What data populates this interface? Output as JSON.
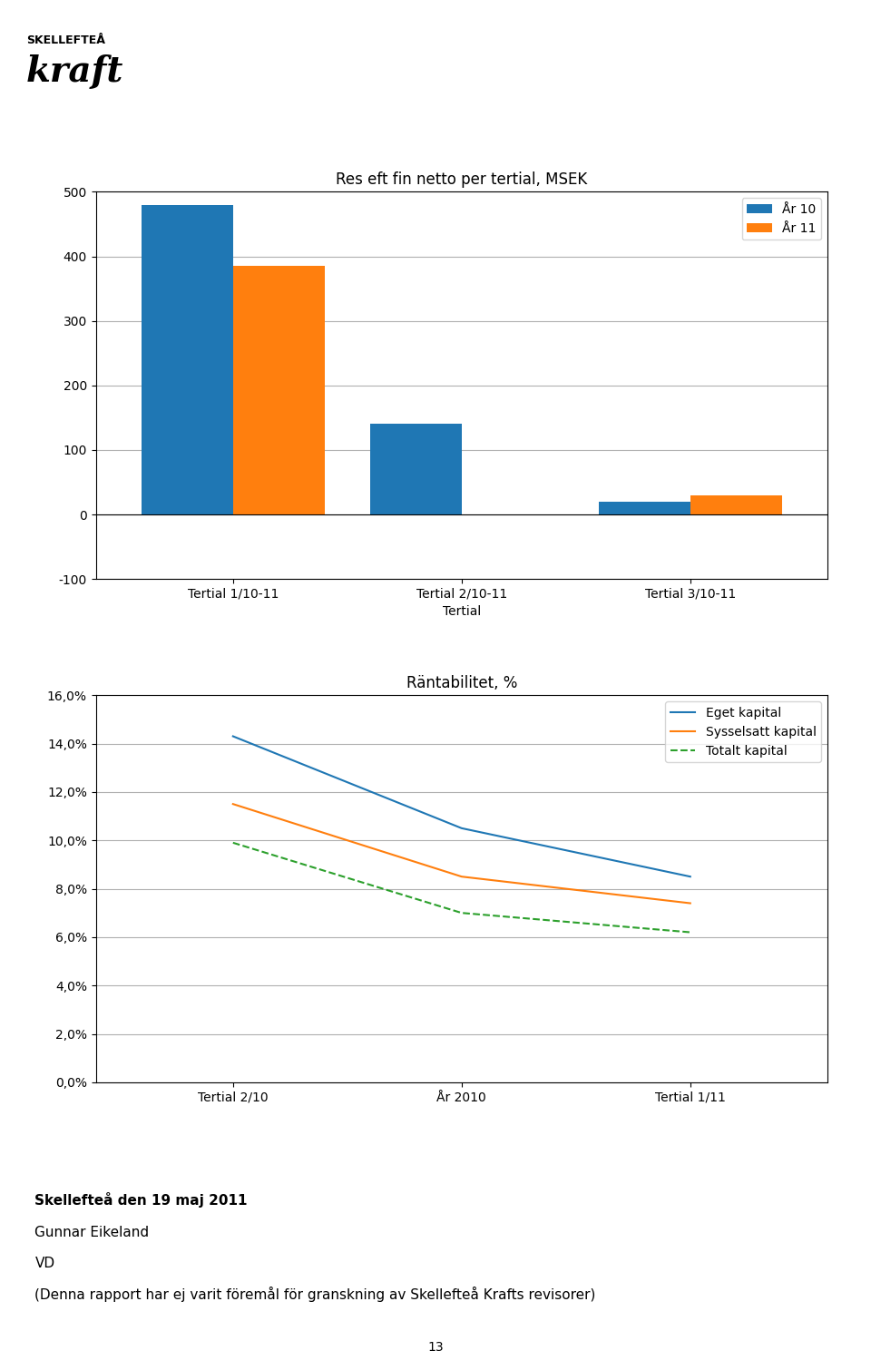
{
  "chart_data": [
    {
      "type": "bar",
      "title": "Res eft fin netto per tertial, MSEK",
      "x_label": "Tertial",
      "categories": [
        "Tertial 1/10-11",
        "Tertial 2/10-11",
        "Tertial 3/10-11"
      ],
      "series": [
        {
          "name": "År 10",
          "values": [
            480,
            140,
            20
          ]
        },
        {
          "name": "År 11",
          "values": [
            385,
            0,
            30
          ]
        }
      ],
      "ylim": [
        -100,
        500
      ],
      "yticks": [
        -100,
        0,
        100,
        200,
        300,
        400,
        500
      ],
      "grid": true,
      "legend": "upper right"
    },
    {
      "type": "line",
      "title": "Räntabilitet, %",
      "categories": [
        "Tertial 2/10",
        "År 2010",
        "Tertial 1/11"
      ],
      "series": [
        {
          "name": "Eget kapital",
          "values": [
            14.3,
            10.5,
            8.5
          ],
          "line_style": "solid"
        },
        {
          "name": "Sysselsatt kapital",
          "values": [
            11.5,
            8.5,
            7.4
          ],
          "line_style": "solid"
        },
        {
          "name": "Totalt kapital",
          "values": [
            9.9,
            7.0,
            6.2
          ],
          "line_style": "dashed"
        }
      ],
      "ylim": [
        0,
        16
      ],
      "yticks": [
        {
          "value": 0,
          "label": "0,0%"
        },
        {
          "value": 2,
          "label": "2,0%"
        },
        {
          "value": 4,
          "label": "4,0%"
        },
        {
          "value": 6,
          "label": "6,0%"
        },
        {
          "value": 8,
          "label": "8,0%"
        },
        {
          "value": 10,
          "label": "10,0%"
        },
        {
          "value": 12,
          "label": "12,0%"
        },
        {
          "value": 14,
          "label": "14,0%"
        },
        {
          "value": 16,
          "label": "16,0%"
        }
      ],
      "grid": true,
      "legend": "upper right"
    }
  ],
  "annotations": [
    "SKELLEFTEÅ",
    "kraft",
    "Skellefteå den 19 maj 2011",
    "Gunnar Eikeland",
    "VD",
    "(Denna rapport har ej varit föremål för granskning av Skellefteå Krafts revisorer)",
    "13"
  ]
}
